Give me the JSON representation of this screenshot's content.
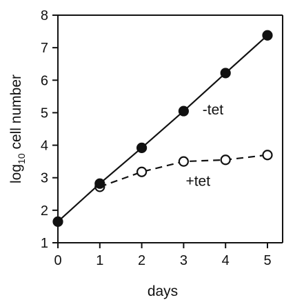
{
  "chart_data": {
    "type": "line",
    "xlabel": "days",
    "ylabel_main": "log",
    "ylabel_sub": "10",
    "ylabel_rest": " cell number",
    "xlim": [
      0,
      5
    ],
    "ylim": [
      1,
      8
    ],
    "xticks": [
      0,
      1,
      2,
      3,
      4,
      5
    ],
    "yticks": [
      1,
      2,
      3,
      4,
      5,
      6,
      7,
      8
    ],
    "grid": false,
    "legend": "none",
    "series": [
      {
        "name": "-tet",
        "marker": "filled",
        "line": "solid",
        "points": [
          {
            "x": 0,
            "y": 1.65
          },
          {
            "x": 1,
            "y": 2.82
          },
          {
            "x": 2,
            "y": 3.92
          },
          {
            "x": 3,
            "y": 5.05
          },
          {
            "x": 4,
            "y": 6.22
          },
          {
            "x": 5,
            "y": 7.38
          }
        ]
      },
      {
        "name": "+tet",
        "marker": "open",
        "line": "dashed",
        "points": [
          {
            "x": 1,
            "y": 2.72
          },
          {
            "x": 2,
            "y": 3.18
          },
          {
            "x": 3,
            "y": 3.5
          },
          {
            "x": 4,
            "y": 3.55
          },
          {
            "x": 5,
            "y": 3.7
          }
        ]
      }
    ],
    "annotations": [
      {
        "text": "-tet",
        "x": 3.45,
        "y": 4.95
      },
      {
        "text": "+tet",
        "x": 3.05,
        "y": 2.75
      }
    ],
    "colors": {
      "ink": "#111111",
      "background": "#ffffff"
    }
  }
}
